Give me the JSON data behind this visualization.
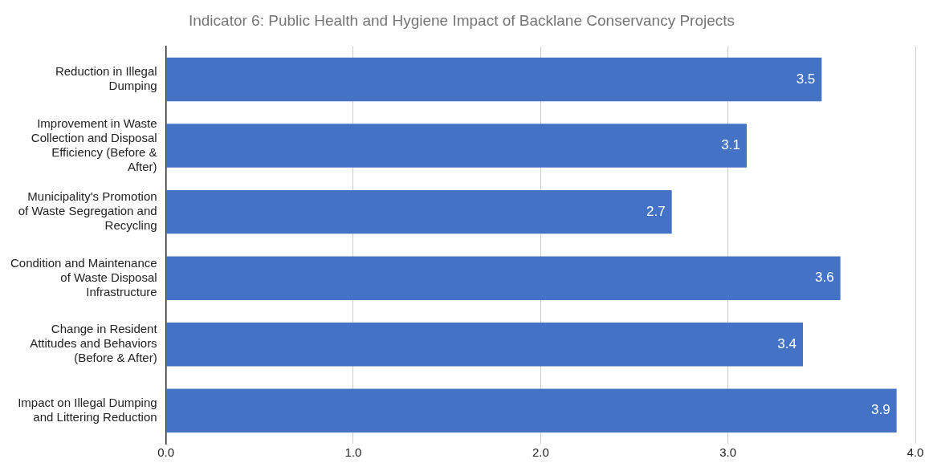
{
  "chart_data": {
    "type": "bar",
    "orientation": "horizontal",
    "title": "Indicator 6: Public Health and Hygiene Impact of Backlane Conservancy Projects",
    "categories": [
      "Reduction in Illegal Dumping",
      "Improvement in Waste Collection and Disposal Efficiency (Before & After)",
      "Municipality's Promotion of Waste Segregation and Recycling",
      "Condition and Maintenance of Waste Disposal Infrastructure",
      "Change in Resident Attitudes and Behaviors (Before & After)",
      "Impact on Illegal Dumping and Littering Reduction"
    ],
    "values": [
      3.5,
      3.1,
      2.7,
      3.6,
      3.4,
      3.9
    ],
    "color": "#4472c4",
    "xlim": [
      0,
      4
    ],
    "xticks": [
      {
        "value": 0,
        "label": "0.0"
      },
      {
        "value": 1,
        "label": "1.0"
      },
      {
        "value": 2,
        "label": "2.0"
      },
      {
        "value": 3,
        "label": "3.0"
      },
      {
        "value": 4,
        "label": "4.0"
      }
    ],
    "grid": "x",
    "data_labels": true
  }
}
